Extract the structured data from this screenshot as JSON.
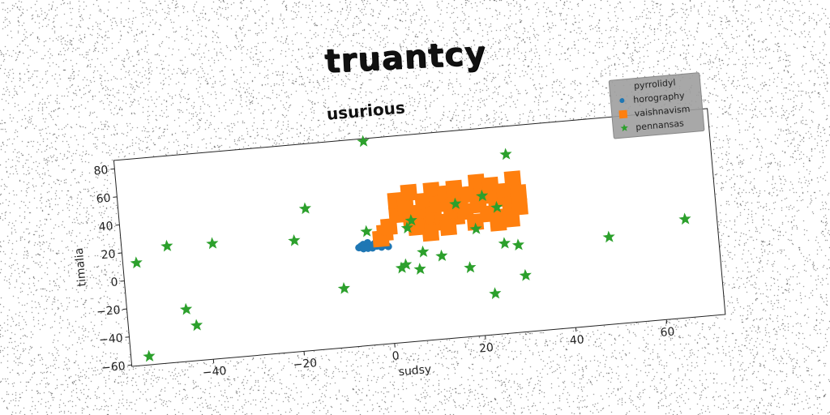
{
  "header": {
    "title": "truantcy"
  },
  "chart_data": {
    "type": "scatter",
    "title": "usurious",
    "xlabel": "sudsy",
    "ylabel": "timalia",
    "xlim": [
      -58,
      73
    ],
    "ylim": [
      -61,
      86
    ],
    "xticks": [
      -40,
      -20,
      0,
      20,
      40,
      60
    ],
    "yticks": [
      -60,
      -40,
      -20,
      0,
      20,
      40,
      60,
      80
    ],
    "grid": false,
    "legend": {
      "title": "pyrrolidyl",
      "placement": "top-right"
    },
    "series": [
      {
        "name": "horography",
        "color": "#1f77b4",
        "marker": "circle",
        "x": [
          -6,
          -5.5,
          -5,
          -4.5,
          -4,
          -3.5,
          -3,
          -2.5,
          -2,
          -1.5,
          -1,
          0,
          -5,
          -4,
          -3,
          -2,
          -1,
          0.5
        ],
        "y": [
          9,
          10,
          11,
          9,
          12,
          10,
          9,
          11,
          10,
          9,
          10,
          9,
          8,
          8,
          8,
          9,
          8,
          8
        ]
      },
      {
        "name": "vaishnavism",
        "color": "#ff7f0e",
        "marker": "square",
        "x": [
          -1,
          0,
          1,
          3,
          3,
          5,
          6,
          6,
          8,
          9,
          10,
          11,
          11,
          12,
          13,
          14,
          15,
          16,
          16,
          17,
          18,
          19,
          20,
          21,
          21,
          22,
          23,
          24,
          25,
          26,
          27,
          28,
          29,
          30,
          30,
          14,
          10,
          7,
          25,
          28
        ],
        "y": [
          14,
          18,
          22,
          30,
          40,
          35,
          25,
          45,
          30,
          38,
          20,
          28,
          45,
          35,
          22,
          42,
          32,
          25,
          45,
          35,
          28,
          40,
          20,
          32,
          48,
          38,
          25,
          45,
          35,
          22,
          40,
          30,
          48,
          38,
          28,
          18,
          15,
          20,
          18,
          20
        ]
      },
      {
        "name": "pennansas",
        "color": "#2ca02c",
        "marker": "star",
        "x": [
          -55,
          -54,
          -48,
          -45,
          -43,
          -38,
          -20,
          -17,
          -10,
          -4,
          -3,
          3,
          4,
          5,
          6,
          7,
          8,
          12,
          16,
          18,
          20,
          22,
          23,
          25,
          26,
          28,
          29,
          30,
          49,
          66
        ],
        "y": [
          12,
          -55,
          22,
          -24,
          -36,
          21,
          18,
          40,
          -19,
          20,
          84,
          -8,
          -6,
          20,
          25,
          -10,
          2,
          -2,
          34,
          -12,
          15,
          38,
          -32,
          29,
          3,
          66,
          1,
          -21,
          1,
          9
        ]
      }
    ]
  }
}
